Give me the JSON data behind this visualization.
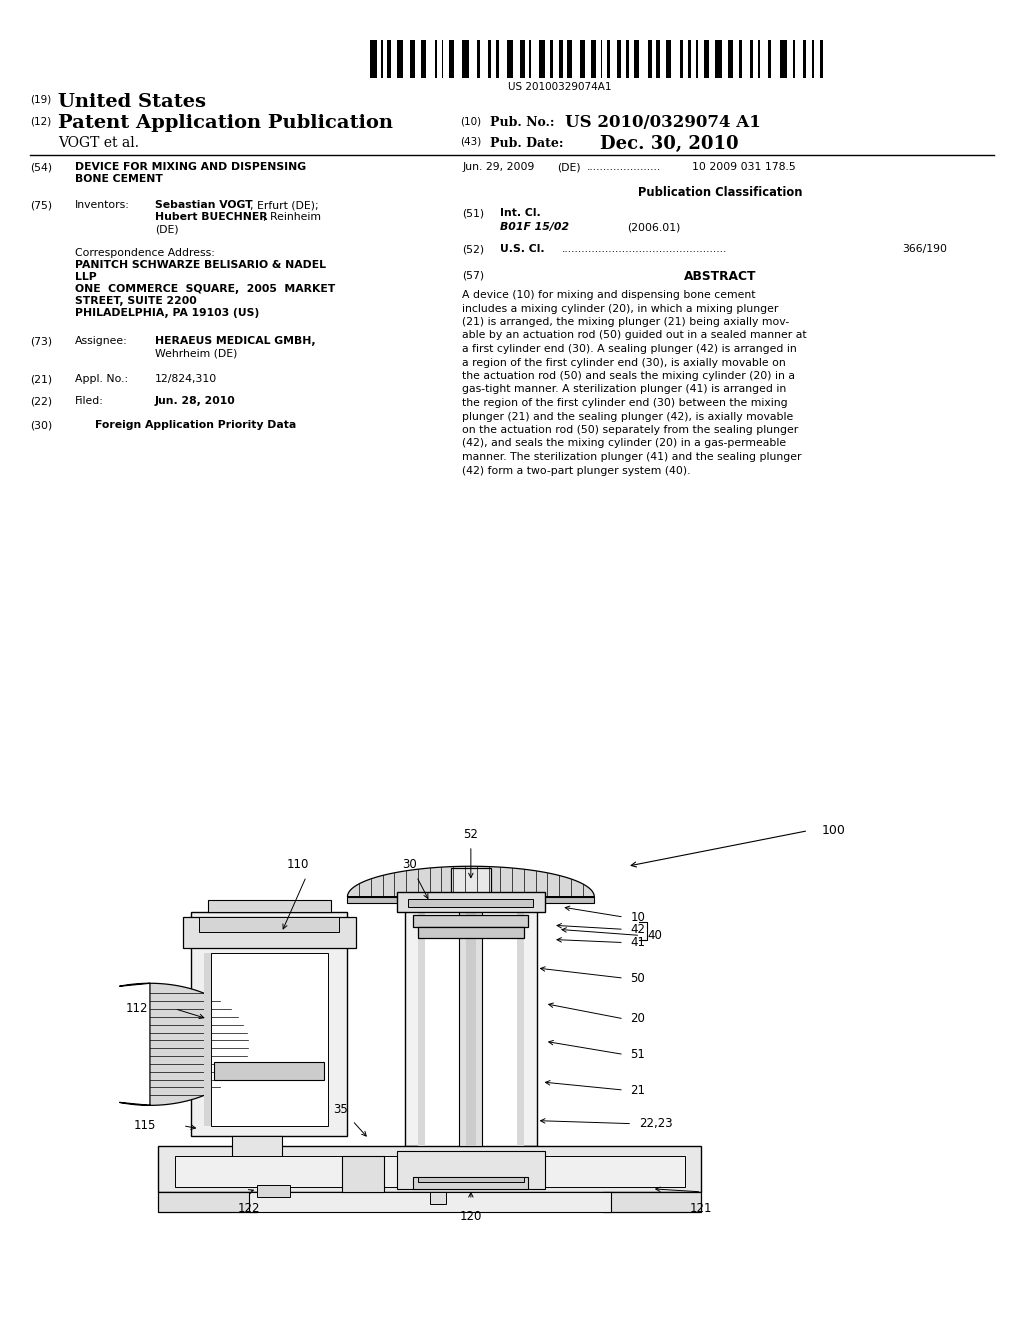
{
  "background_color": "#ffffff",
  "barcode_text": "US 20100329074A1",
  "header_line1_num": "(19)",
  "header_line1_text": "United States",
  "header_line2_num": "(12)",
  "header_line2_text": "Patent Application Publication",
  "header_right1_num": "(10)",
  "header_right1_label": "Pub. No.:",
  "header_right1_value": "US 2010/0329074 A1",
  "header_line3_text": "VOGT et al.",
  "header_right2_num": "(43)",
  "header_right2_label": "Pub. Date:",
  "header_right2_value": "Dec. 30, 2010",
  "field54_num": "(54)",
  "priority_date": "Jun. 29, 2009",
  "priority_country": "(DE)",
  "priority_num": "10 2009 031 178.5",
  "pub_class_header": "Publication Classification",
  "field51_num": "(51)",
  "field51_label": "Int. Cl.",
  "field51_class": "B01F 15/02",
  "field51_year": "(2006.01)",
  "field52_num": "(52)",
  "field52_label": "U.S. Cl.",
  "field52_value": "366/190",
  "field57_num": "(57)",
  "field57_label": "ABSTRACT",
  "field75_num": "(75)",
  "field75_label": "Inventors:",
  "field73_num": "(73)",
  "field73_label": "Assignee:",
  "field21_num": "(21)",
  "field21_label": "Appl. No.:",
  "field21_text": "12/824,310",
  "field22_num": "(22)",
  "field22_label": "Filed:",
  "field22_text": "Jun. 28, 2010",
  "field30_num": "(30)",
  "field30_text": "Foreign Application Priority Data",
  "abstract_lines": [
    "A device (10) for mixing and dispensing bone cement",
    "includes a mixing cylinder (20), in which a mixing plunger",
    "(21) is arranged, the mixing plunger (21) being axially mov-",
    "able by an actuation rod (50) guided out in a sealed manner at",
    "a first cylinder end (30). A sealing plunger (42) is arranged in",
    "a region of the first cylinder end (30), is axially movable on",
    "the actuation rod (50) and seals the mixing cylinder (20) in a",
    "gas-tight manner. A sterilization plunger (41) is arranged in",
    "the region of the first cylinder end (30) between the mixing",
    "plunger (21) and the sealing plunger (42), is axially movable",
    "on the actuation rod (50) separately from the sealing plunger",
    "(42), and seals the mixing cylinder (20) in a gas-permeable",
    "manner. The sterilization plunger (41) and the sealing plunger",
    "(42) form a two-part plunger system (40)."
  ]
}
